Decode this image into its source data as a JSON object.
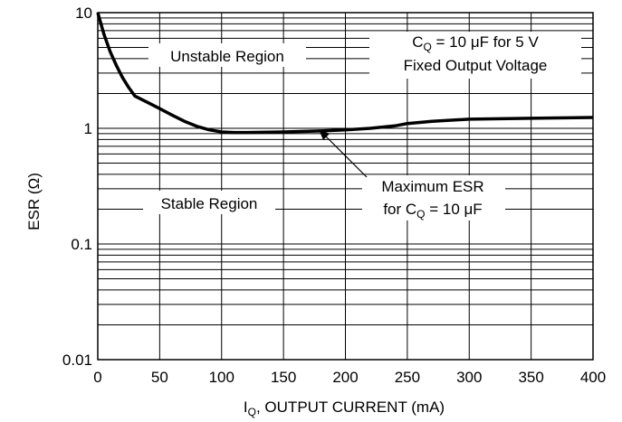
{
  "chart_data": {
    "type": "line",
    "xlabel": {
      "main": "I",
      "sub": "Q",
      "rest": ", OUTPUT CURRENT (mA)"
    },
    "ylabel": "ESR (Ω)",
    "xlim": [
      0,
      400
    ],
    "ylim": [
      0.01,
      10
    ],
    "yscale": "log",
    "grid": true,
    "x_ticks": [
      "0",
      "50",
      "100",
      "150",
      "200",
      "250",
      "300",
      "350",
      "400"
    ],
    "y_ticks": [
      "0.01",
      "0.1",
      "1",
      "10"
    ],
    "series": [
      {
        "x": [
          0,
          5,
          10,
          15,
          20,
          25,
          30,
          40,
          50,
          60,
          70,
          80,
          90,
          100,
          110,
          120,
          150,
          180,
          200,
          220,
          240,
          250,
          270,
          300,
          350,
          400
        ],
        "y": [
          10,
          6.5,
          4.6,
          3.5,
          2.75,
          2.25,
          1.9,
          1.68,
          1.48,
          1.3,
          1.15,
          1.04,
          0.97,
          0.93,
          0.92,
          0.92,
          0.93,
          0.95,
          0.97,
          1.0,
          1.05,
          1.1,
          1.15,
          1.2,
          1.22,
          1.24
        ]
      }
    ],
    "annotations": {
      "unstable": "Unstable Region",
      "stable": "Stable Region",
      "note_cap": {
        "pre": "C",
        "sub": "Q",
        "post": " = 10 μF for 5 V"
      },
      "note_line2": "Fixed Output Voltage",
      "curve_line1": "Maximum ESR",
      "curve_line2": {
        "pre": "for C",
        "sub": "Q",
        "post": " = 10 μF"
      }
    }
  }
}
